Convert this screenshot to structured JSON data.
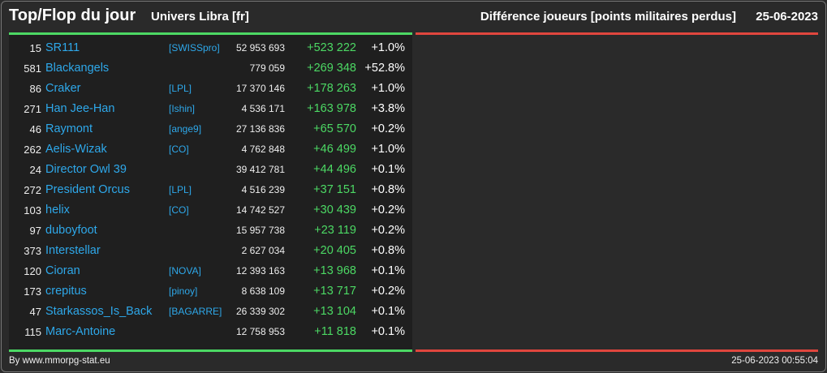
{
  "header": {
    "title": "Top/Flop du jour",
    "universe": "Univers Libra [fr]",
    "metric": "Différence joueurs [points militaires perdus]",
    "date": "25-06-2023"
  },
  "colors": {
    "top_bar": "#4cd964",
    "flop_bar": "#e0463e",
    "player_link": "#2ea8ea",
    "diff_positive": "#4cd964"
  },
  "top_rows": [
    {
      "rank": "15",
      "name": "SR111",
      "alliance": "[SWISSpro]",
      "total": "52 953 693",
      "diff": "+523 222",
      "pct": "+1.0%"
    },
    {
      "rank": "581",
      "name": "Blackangels",
      "alliance": "",
      "total": "779 059",
      "diff": "+269 348",
      "pct": "+52.8%"
    },
    {
      "rank": "86",
      "name": "Craker",
      "alliance": "[LPL]",
      "total": "17 370 146",
      "diff": "+178 263",
      "pct": "+1.0%"
    },
    {
      "rank": "271",
      "name": "Han Jee-Han",
      "alliance": "[Ishin]",
      "total": "4 536 171",
      "diff": "+163 978",
      "pct": "+3.8%"
    },
    {
      "rank": "46",
      "name": "Raymont",
      "alliance": "[ange9]",
      "total": "27 136 836",
      "diff": "+65 570",
      "pct": "+0.2%"
    },
    {
      "rank": "262",
      "name": "Aelis-Wizak",
      "alliance": "[CO]",
      "total": "4 762 848",
      "diff": "+46 499",
      "pct": "+1.0%"
    },
    {
      "rank": "24",
      "name": "Director Owl 39",
      "alliance": "",
      "total": "39 412 781",
      "diff": "+44 496",
      "pct": "+0.1%"
    },
    {
      "rank": "272",
      "name": "President Orcus",
      "alliance": "[LPL]",
      "total": "4 516 239",
      "diff": "+37 151",
      "pct": "+0.8%"
    },
    {
      "rank": "103",
      "name": "helix",
      "alliance": "[CO]",
      "total": "14 742 527",
      "diff": "+30 439",
      "pct": "+0.2%"
    },
    {
      "rank": "97",
      "name": "duboyfoot",
      "alliance": "",
      "total": "15 957 738",
      "diff": "+23 119",
      "pct": "+0.2%"
    },
    {
      "rank": "373",
      "name": "Interstellar",
      "alliance": "",
      "total": "2 627 034",
      "diff": "+20 405",
      "pct": "+0.8%"
    },
    {
      "rank": "120",
      "name": "Cioran",
      "alliance": "[NOVA]",
      "total": "12 393 163",
      "diff": "+13 968",
      "pct": "+0.1%"
    },
    {
      "rank": "173",
      "name": "crepitus",
      "alliance": "[pinoy]",
      "total": "8 638 109",
      "diff": "+13 717",
      "pct": "+0.2%"
    },
    {
      "rank": "47",
      "name": "Starkassos_Is_Back",
      "alliance": "[BAGARRE]",
      "total": "26 339 302",
      "diff": "+13 104",
      "pct": "+0.1%"
    },
    {
      "rank": "115",
      "name": "Marc-Antoine",
      "alliance": "",
      "total": "12 758 953",
      "diff": "+11 818",
      "pct": "+0.1%"
    }
  ],
  "footer": {
    "credit": "By www.mmorpg-stat.eu",
    "timestamp": "25-06-2023 00:55:04"
  }
}
